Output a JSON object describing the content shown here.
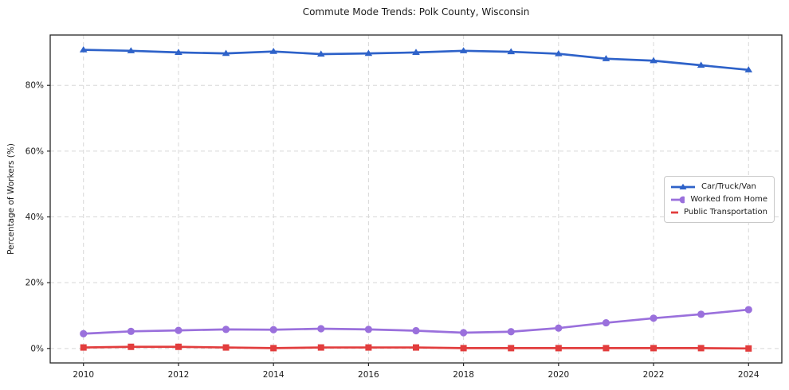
{
  "chart_data": {
    "type": "line",
    "title": "Commute Mode Trends: Polk County, Wisconsin",
    "xlabel": "",
    "ylabel": "Percentage of Workers (%)",
    "x": [
      2010,
      2011,
      2012,
      2013,
      2014,
      2015,
      2016,
      2017,
      2018,
      2019,
      2020,
      2021,
      2022,
      2023,
      2024
    ],
    "series": [
      {
        "name": "Car/Truck/Van",
        "color": "#2e62c9",
        "marker": "triangle",
        "values": [
          90.8,
          90.5,
          90.0,
          89.7,
          90.3,
          89.5,
          89.7,
          90.0,
          90.5,
          90.2,
          89.6,
          88.1,
          87.5,
          86.1,
          84.7
        ]
      },
      {
        "name": "Worked from Home",
        "color": "#9a70dc",
        "marker": "circle",
        "values": [
          4.5,
          5.2,
          5.5,
          5.8,
          5.7,
          6.0,
          5.8,
          5.4,
          4.8,
          5.1,
          6.2,
          7.8,
          9.2,
          10.4,
          11.8
        ]
      },
      {
        "name": "Public Transportation",
        "color": "#e23d3d",
        "marker": "square",
        "values": [
          0.3,
          0.5,
          0.5,
          0.3,
          0.1,
          0.3,
          0.3,
          0.3,
          0.1,
          0.1,
          0.1,
          0.1,
          0.1,
          0.1,
          0.0
        ]
      }
    ],
    "xticks": [
      2010,
      2012,
      2014,
      2016,
      2018,
      2020,
      2022,
      2024
    ],
    "yticks": [
      0,
      20,
      40,
      60,
      80
    ],
    "ytick_labels": [
      "0%",
      "20%",
      "40%",
      "60%",
      "80%"
    ],
    "xlim": [
      2009.3,
      2024.7
    ],
    "ylim": [
      -4.4,
      95.3
    ],
    "grid": true,
    "grid_style": "dashed",
    "legend_position": "center-right-inside",
    "colors": {
      "grid": "#d8d8d8",
      "spine": "#262626",
      "text": "#1a1a1a",
      "background": "#ffffff"
    }
  }
}
